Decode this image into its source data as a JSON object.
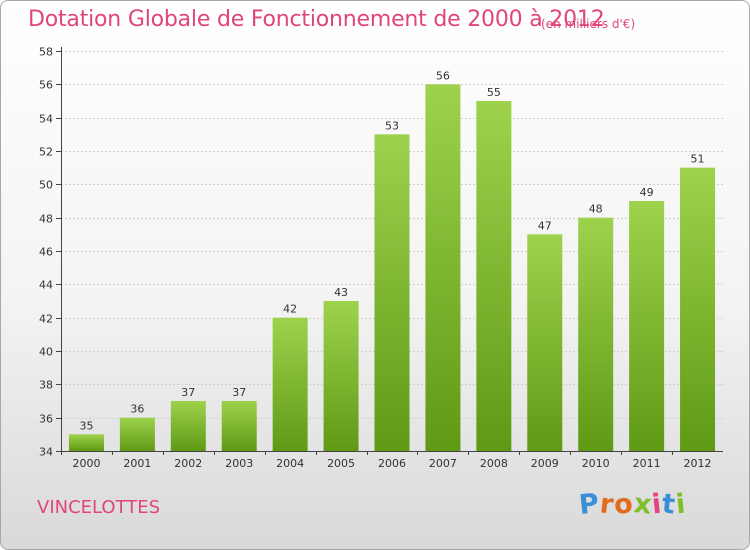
{
  "header": {
    "title": "Dotation Globale de Fonctionnement de 2000 à 2012",
    "subtitle": "(en milliers d'€)"
  },
  "footer": {
    "location": "VINCELOTTES",
    "logo_text": "Proxiti",
    "logo_colors": [
      "#3a8fd8",
      "#e36b1e",
      "#e36b1e",
      "#7fbf2a",
      "#e0457b",
      "#3a8fd8",
      "#7fbf2a"
    ]
  },
  "colors": {
    "bar_top": "#9ed24d",
    "bar_bottom": "#5f9a14",
    "axis": "#444444",
    "grid": "#cfcfcf"
  },
  "chart_data": {
    "type": "bar",
    "title": "Dotation Globale de Fonctionnement de 2000 à 2012",
    "subtitle": "(en milliers d'€)",
    "xlabel": "",
    "ylabel": "",
    "categories": [
      "2000",
      "2001",
      "2002",
      "2003",
      "2004",
      "2005",
      "2006",
      "2007",
      "2008",
      "2009",
      "2010",
      "2011",
      "2012"
    ],
    "values": [
      35,
      36,
      37,
      37,
      42,
      43,
      53,
      56,
      55,
      47,
      48,
      49,
      51
    ],
    "ylim": [
      34,
      58
    ],
    "yticks": [
      34,
      36,
      38,
      40,
      42,
      44,
      46,
      48,
      50,
      52,
      54,
      56,
      58
    ],
    "grid": "horizontal dashed",
    "data_labels": true
  }
}
